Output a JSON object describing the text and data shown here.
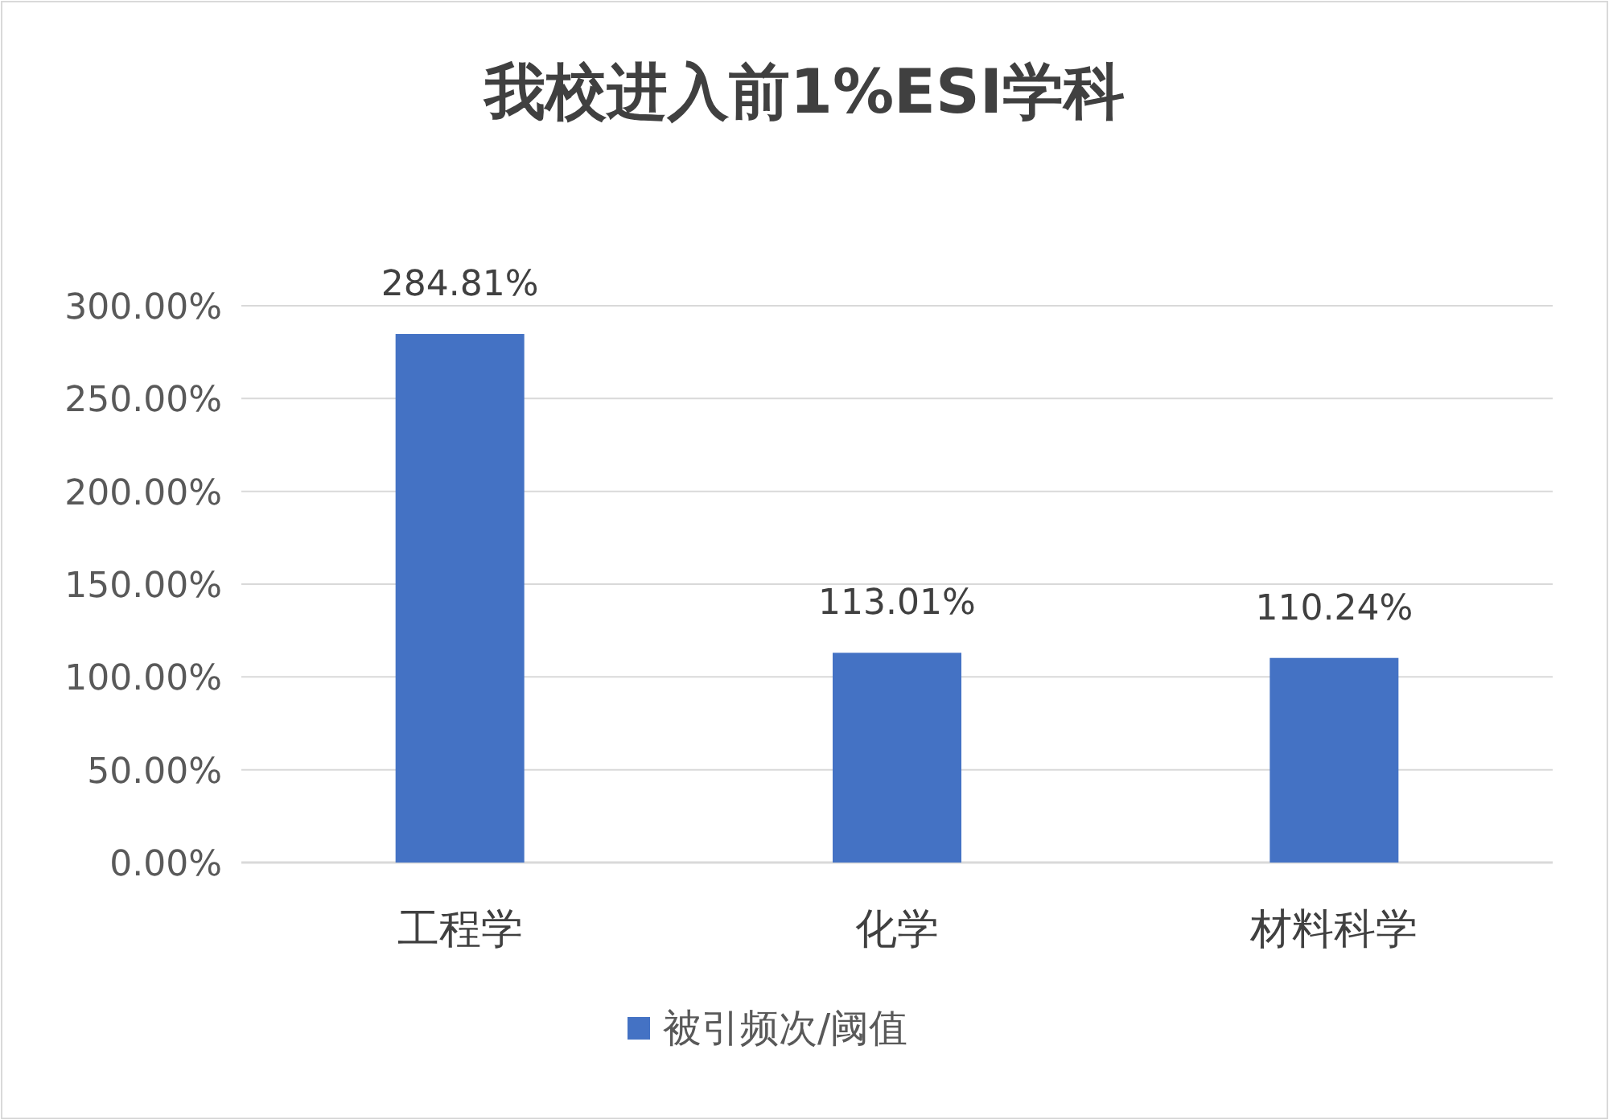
{
  "chart_data": {
    "type": "bar",
    "title": "我校进入前1%ESI学科",
    "categories": [
      "工程学",
      "化学",
      "材料科学"
    ],
    "series": [
      {
        "name": "被引频次/阈值",
        "color": "#4472c4",
        "values": [
          284.81,
          113.01,
          110.24
        ],
        "value_labels": [
          "284.81%",
          "113.01%",
          "110.24%"
        ]
      }
    ],
    "ylim": [
      0,
      300
    ],
    "yticks": [
      {
        "value": 0,
        "label": "0.00%"
      },
      {
        "value": 50,
        "label": "50.00%"
      },
      {
        "value": 100,
        "label": "100.00%"
      },
      {
        "value": 150,
        "label": "150.00%"
      },
      {
        "value": 200,
        "label": "200.00%"
      },
      {
        "value": 250,
        "label": "250.00%"
      },
      {
        "value": 300,
        "label": "300.00%"
      }
    ],
    "grid": "y",
    "legend": "bottom"
  }
}
